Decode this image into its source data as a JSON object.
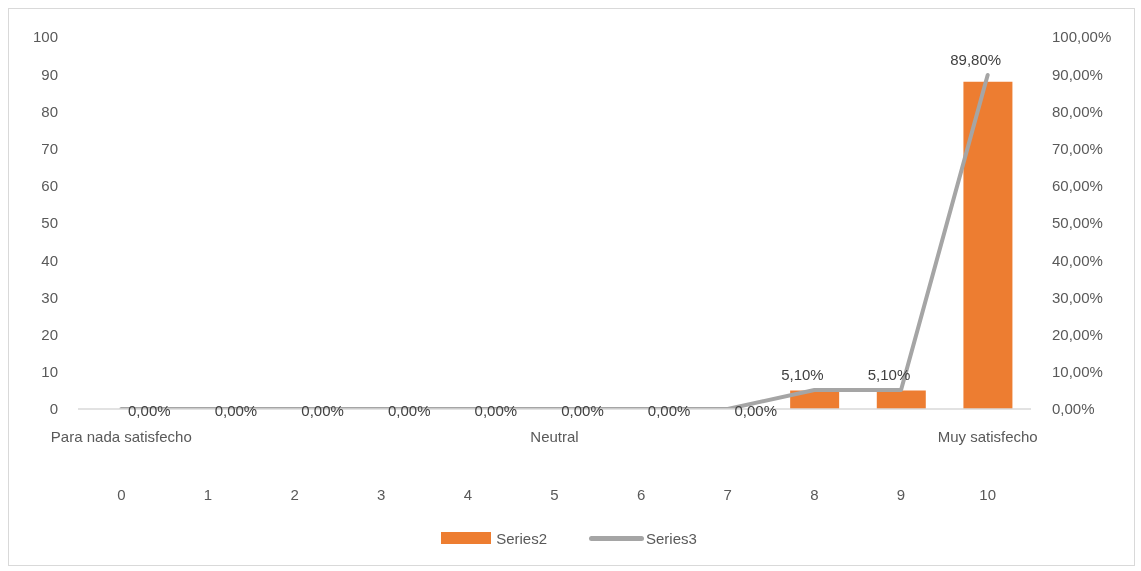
{
  "chart_data": {
    "type": "bar",
    "categories": [
      "0",
      "1",
      "2",
      "3",
      "4",
      "5",
      "6",
      "7",
      "8",
      "9",
      "10"
    ],
    "series": [
      {
        "name": "Series2",
        "color": "#ed7d31",
        "values": [
          0,
          0,
          0,
          0,
          0,
          0,
          0,
          0,
          5,
          5,
          88
        ]
      },
      {
        "name": "Series3",
        "type": "line",
        "axis": "y2",
        "color": "#a5a5a5",
        "marker": "none",
        "values": [
          0,
          0,
          0,
          0,
          0,
          0,
          0,
          0,
          5.1,
          5.1,
          89.8
        ],
        "value_labels": [
          "0,00%",
          "0,00%",
          "0,00%",
          "0,00%",
          "0,00%",
          "0,00%",
          "0,00%",
          "0,00%",
          "5,10%",
          "5,10%",
          "89,80%"
        ]
      }
    ],
    "ylim": [
      0,
      100
    ],
    "yticks": [
      0,
      10,
      20,
      30,
      40,
      50,
      60,
      70,
      80,
      90,
      100
    ],
    "y2lim": [
      0,
      100
    ],
    "y2ticks": [
      {
        "value": 0,
        "label": "0,00%"
      },
      {
        "value": 10,
        "label": "10,00%"
      },
      {
        "value": 20,
        "label": "20,00%"
      },
      {
        "value": 30,
        "label": "30,00%"
      },
      {
        "value": 40,
        "label": "40,00%"
      },
      {
        "value": 50,
        "label": "50,00%"
      },
      {
        "value": 60,
        "label": "60,00%"
      },
      {
        "value": 70,
        "label": "70,00%"
      },
      {
        "value": 80,
        "label": "80,00%"
      },
      {
        "value": 90,
        "label": "90,00%"
      },
      {
        "value": 100,
        "label": "100,00%"
      }
    ],
    "annotations": [
      "Para nada satisfecho",
      "Neutral",
      "Muy satisfecho"
    ],
    "legend": "bottom"
  }
}
